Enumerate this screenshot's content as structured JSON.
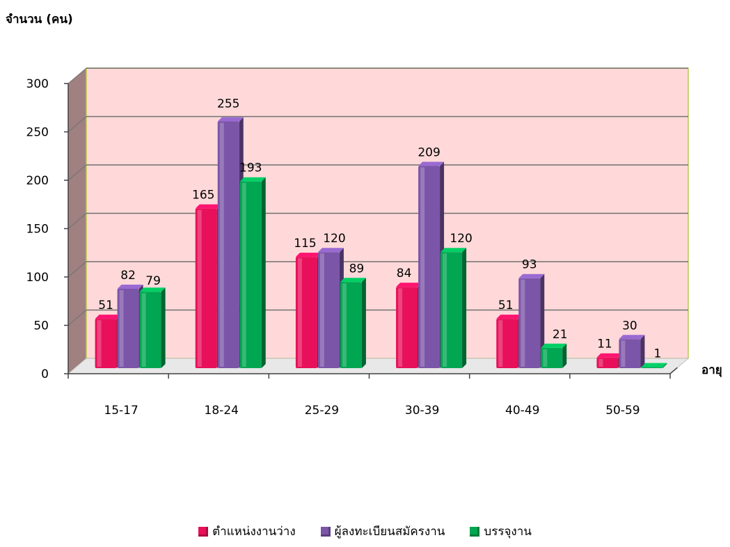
{
  "chart_data": {
    "type": "bar",
    "title": "",
    "ylabel": "จำนวน (คน)",
    "xlabel": "อายุ",
    "ylim": [
      0,
      300
    ],
    "yticks": [
      0,
      50,
      100,
      150,
      200,
      250,
      300
    ],
    "grid": true,
    "legend_position": "bottom",
    "background_color": "#FFD9D9",
    "categories": [
      "15-17",
      "18-24",
      "25-29",
      "30-39",
      "40-49",
      "50-59"
    ],
    "series": [
      {
        "name": "ตำแหน่งงานว่าง",
        "color": "#E8105A",
        "values": [
          51,
          165,
          115,
          84,
          51,
          11
        ]
      },
      {
        "name": "ผู้ลงทะเบียนสมัครงาน",
        "color": "#7B55A8",
        "values": [
          82,
          255,
          120,
          209,
          93,
          30
        ]
      },
      {
        "name": "บรรจุงาน",
        "color": "#00A651",
        "values": [
          79,
          193,
          89,
          120,
          21,
          1
        ]
      }
    ]
  }
}
